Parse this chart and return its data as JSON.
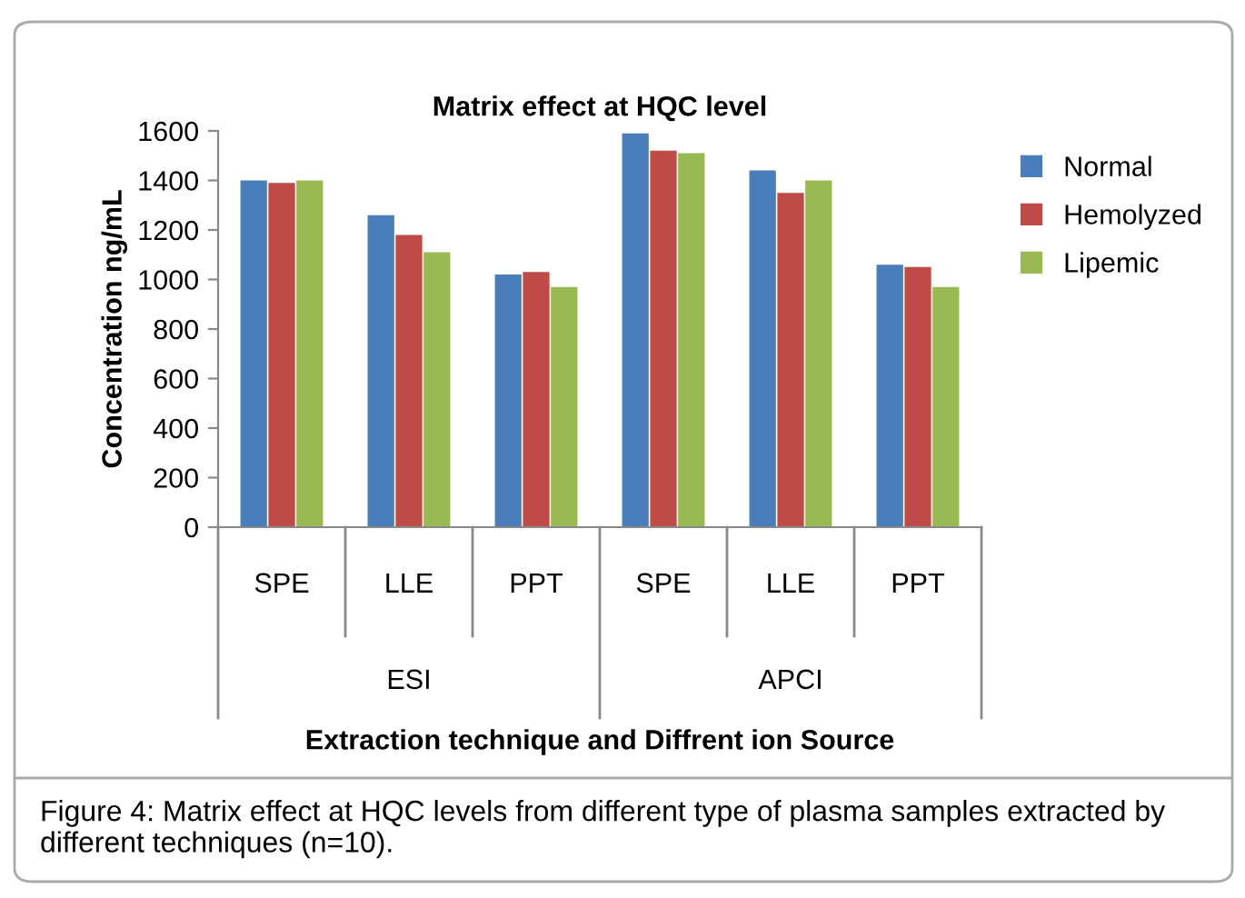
{
  "chart_data": {
    "type": "bar",
    "title": "Matrix effect at HQC level",
    "categories": [
      "SPE",
      "LLE",
      "PPT",
      "SPE",
      "LLE",
      "PPT"
    ],
    "series": [
      {
        "name": "Normal",
        "color": "#4a7ebb",
        "values": [
          1400,
          1260,
          1020,
          1590,
          1440,
          1060
        ]
      },
      {
        "name": "Hemolyzed",
        "color": "#be4b48",
        "values": [
          1390,
          1180,
          1030,
          1520,
          1350,
          1050
        ]
      },
      {
        "name": "Lipemic",
        "color": "#98b954",
        "values": [
          1400,
          1110,
          970,
          1510,
          1400,
          970
        ]
      }
    ],
    "xlabel": "Extraction technique and Diffrent ion Source",
    "ylabel": "Concentration ng/mL",
    "ylim": [
      0,
      1600
    ],
    "yticks": [
      0,
      200,
      400,
      600,
      800,
      1000,
      1200,
      1400,
      1600
    ],
    "grid": false,
    "legend": "right",
    "annotations": [
      "ESI",
      "APCI",
      "Figure 4: Matrix effect at HQC levels from different type of plasma samples extracted by different techniques (n=10)."
    ]
  }
}
